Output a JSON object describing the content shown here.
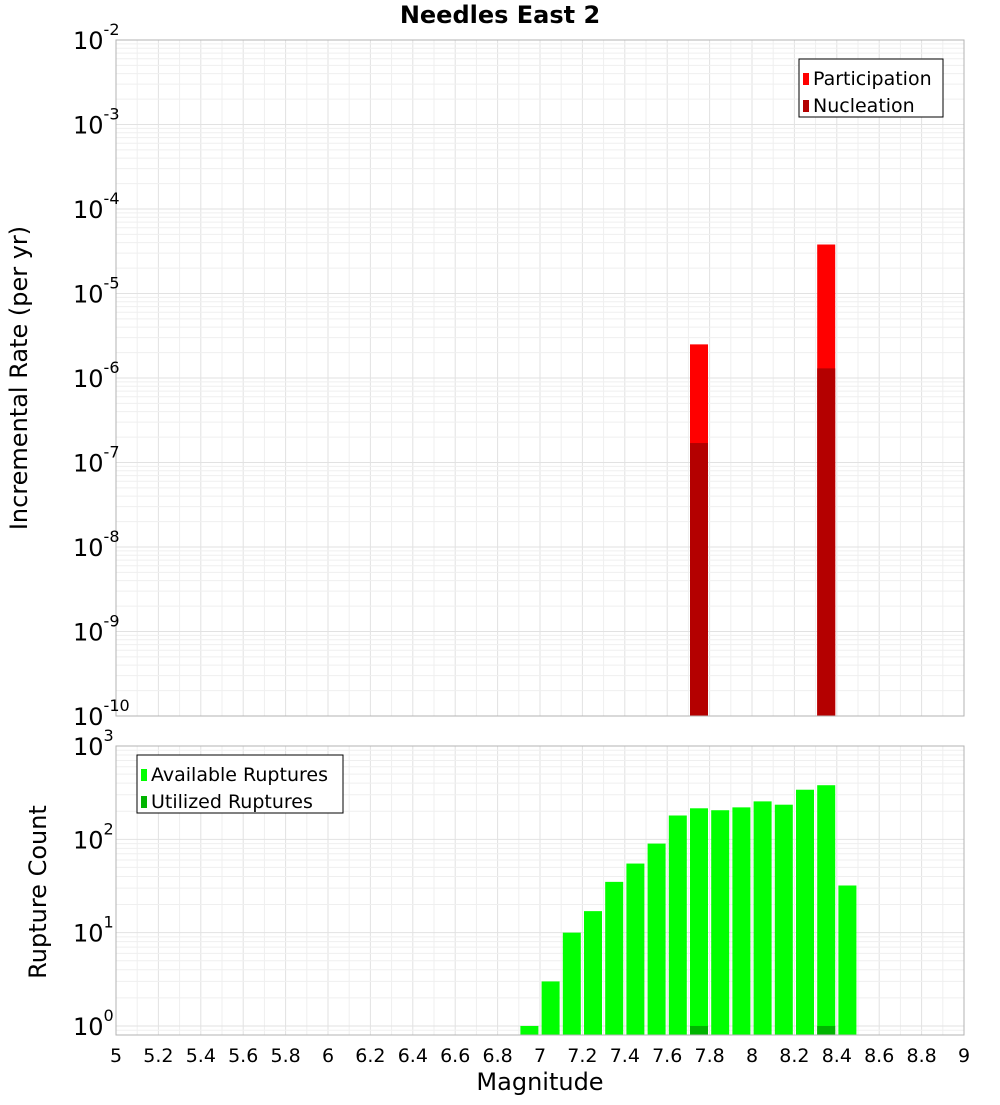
{
  "chart_data": [
    {
      "type": "bar",
      "title": "Needles East 2",
      "xlabel": "",
      "ylabel": "Incremental Rate (per yr)",
      "yscale": "log",
      "ylim": [
        1e-10,
        0.01
      ],
      "xlim": [
        5,
        9
      ],
      "ytick_exponents": [
        -10,
        -9,
        -8,
        -7,
        -6,
        -5,
        -4,
        -3,
        -2
      ],
      "grid": true,
      "legend_position": "top-right",
      "series": [
        {
          "name": "Participation",
          "color": "#ff0000",
          "x": [
            7.75,
            8.35
          ],
          "values": [
            2.5e-06,
            3.8e-05
          ]
        },
        {
          "name": "Nucleation",
          "color": "#b40000",
          "x": [
            7.75,
            8.35
          ],
          "values": [
            1.7e-07,
            1.3e-06
          ]
        }
      ]
    },
    {
      "type": "bar",
      "title": "",
      "xlabel": "Magnitude",
      "ylabel": "Rupture Count",
      "yscale": "log",
      "ylim": [
        0.8,
        1000
      ],
      "xlim": [
        5,
        9
      ],
      "ytick_exponents": [
        0,
        1,
        2,
        3
      ],
      "xticks": [
        "5",
        "5.2",
        "5.4",
        "5.6",
        "5.8",
        "6",
        "6.2",
        "6.4",
        "6.6",
        "6.8",
        "7",
        "7.2",
        "7.4",
        "7.6",
        "7.8",
        "8",
        "8.2",
        "8.4",
        "8.6",
        "8.8",
        "9"
      ],
      "grid": true,
      "legend_position": "top-left",
      "series": [
        {
          "name": "Available Ruptures",
          "color": "#00ff00",
          "x": [
            6.95,
            7.05,
            7.15,
            7.25,
            7.35,
            7.45,
            7.55,
            7.65,
            7.75,
            7.85,
            7.95,
            8.05,
            8.15,
            8.25,
            8.35,
            8.45
          ],
          "values": [
            1,
            3,
            10,
            17,
            35,
            55,
            90,
            180,
            215,
            205,
            220,
            255,
            235,
            340,
            380,
            32
          ]
        },
        {
          "name": "Utilized Ruptures",
          "color": "#00b400",
          "x": [
            7.75,
            8.35
          ],
          "values": [
            1,
            1
          ]
        }
      ]
    }
  ]
}
